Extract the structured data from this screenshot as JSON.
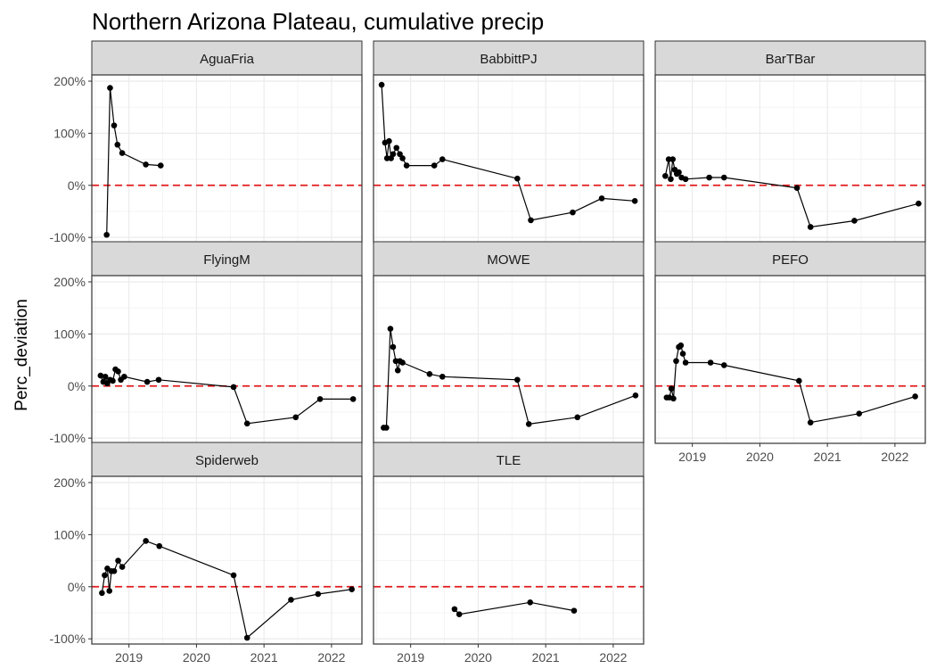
{
  "chart_data": {
    "type": "line",
    "title": "Northern Arizona Plateau, cumulative precip",
    "xlabel": "",
    "ylabel": "Perc_deviation",
    "xlim": [
      2018.45,
      2022.45
    ],
    "ylim": [
      -110,
      212
    ],
    "x_ticks": [
      2019,
      2020,
      2021,
      2022
    ],
    "y_ticks": [
      -100,
      0,
      100,
      200
    ],
    "y_tick_labels": [
      "-100%",
      "0%",
      "100%",
      "200%"
    ],
    "x_tick_labels": [
      "2019",
      "2020",
      "2021",
      "2022"
    ],
    "reference_line": {
      "y": 0,
      "style": "dashed",
      "color": "#e31a1c"
    },
    "grid": true,
    "panels": [
      {
        "name": "AguaFria",
        "x": [
          2018.67,
          2018.72,
          2018.78,
          2018.83,
          2018.9,
          2019.25,
          2019.47
        ],
        "y": [
          -95,
          187,
          115,
          78,
          62,
          40,
          38
        ]
      },
      {
        "name": "BabbittPJ",
        "x": [
          2018.57,
          2018.62,
          2018.65,
          2018.68,
          2018.71,
          2018.74,
          2018.79,
          2018.84,
          2018.88,
          2018.94,
          2019.35,
          2019.47,
          2020.58,
          2020.78,
          2021.4,
          2021.83,
          2022.32
        ],
        "y": [
          193,
          82,
          52,
          85,
          52,
          60,
          72,
          60,
          52,
          38,
          38,
          50,
          13,
          -67,
          -52,
          -25,
          -30
        ]
      },
      {
        "name": "BarTBar",
        "x": [
          2018.6,
          2018.65,
          2018.68,
          2018.71,
          2018.74,
          2018.77,
          2018.8,
          2018.84,
          2018.9,
          2019.25,
          2019.47,
          2020.55,
          2020.75,
          2021.4,
          2022.35
        ],
        "y": [
          18,
          50,
          12,
          50,
          30,
          22,
          25,
          15,
          12,
          15,
          15,
          -5,
          -80,
          -68,
          -35
        ]
      },
      {
        "name": "FlyingM",
        "x": [
          2018.58,
          2018.62,
          2018.65,
          2018.68,
          2018.72,
          2018.76,
          2018.8,
          2018.84,
          2018.88,
          2018.93,
          2019.27,
          2019.44,
          2020.55,
          2020.75,
          2021.47,
          2021.83,
          2022.32
        ],
        "y": [
          20,
          8,
          18,
          5,
          12,
          10,
          32,
          28,
          12,
          18,
          8,
          12,
          -2,
          -72,
          -60,
          -25,
          -25
        ]
      },
      {
        "name": "MOWE",
        "x": [
          2018.6,
          2018.64,
          2018.7,
          2018.74,
          2018.78,
          2018.81,
          2018.84,
          2018.88,
          2019.28,
          2019.47,
          2020.58,
          2020.75,
          2021.47,
          2022.33
        ],
        "y": [
          -80,
          -80,
          110,
          75,
          48,
          30,
          48,
          45,
          23,
          18,
          12,
          -73,
          -60,
          -18
        ]
      },
      {
        "name": "PEFO",
        "x": [
          2018.62,
          2018.66,
          2018.69,
          2018.72,
          2018.76,
          2018.8,
          2018.83,
          2018.86,
          2018.9,
          2019.27,
          2019.47,
          2020.58,
          2020.75,
          2021.47,
          2022.3
        ],
        "y": [
          -22,
          -22,
          -5,
          -24,
          48,
          75,
          78,
          62,
          45,
          45,
          40,
          10,
          -70,
          -53,
          -20
        ]
      },
      {
        "name": "Spiderweb",
        "x": [
          2018.6,
          2018.64,
          2018.68,
          2018.71,
          2018.74,
          2018.78,
          2018.84,
          2018.9,
          2019.25,
          2019.45,
          2020.55,
          2020.75,
          2021.4,
          2021.8,
          2022.3
        ],
        "y": [
          -12,
          22,
          35,
          -8,
          30,
          30,
          50,
          38,
          88,
          78,
          22,
          -98,
          -25,
          -14,
          -5
        ]
      },
      {
        "name": "TLE",
        "x": [
          2019.65,
          2019.72,
          2020.77,
          2021.42
        ],
        "y": [
          -43,
          -53,
          -30,
          -46
        ]
      }
    ]
  }
}
